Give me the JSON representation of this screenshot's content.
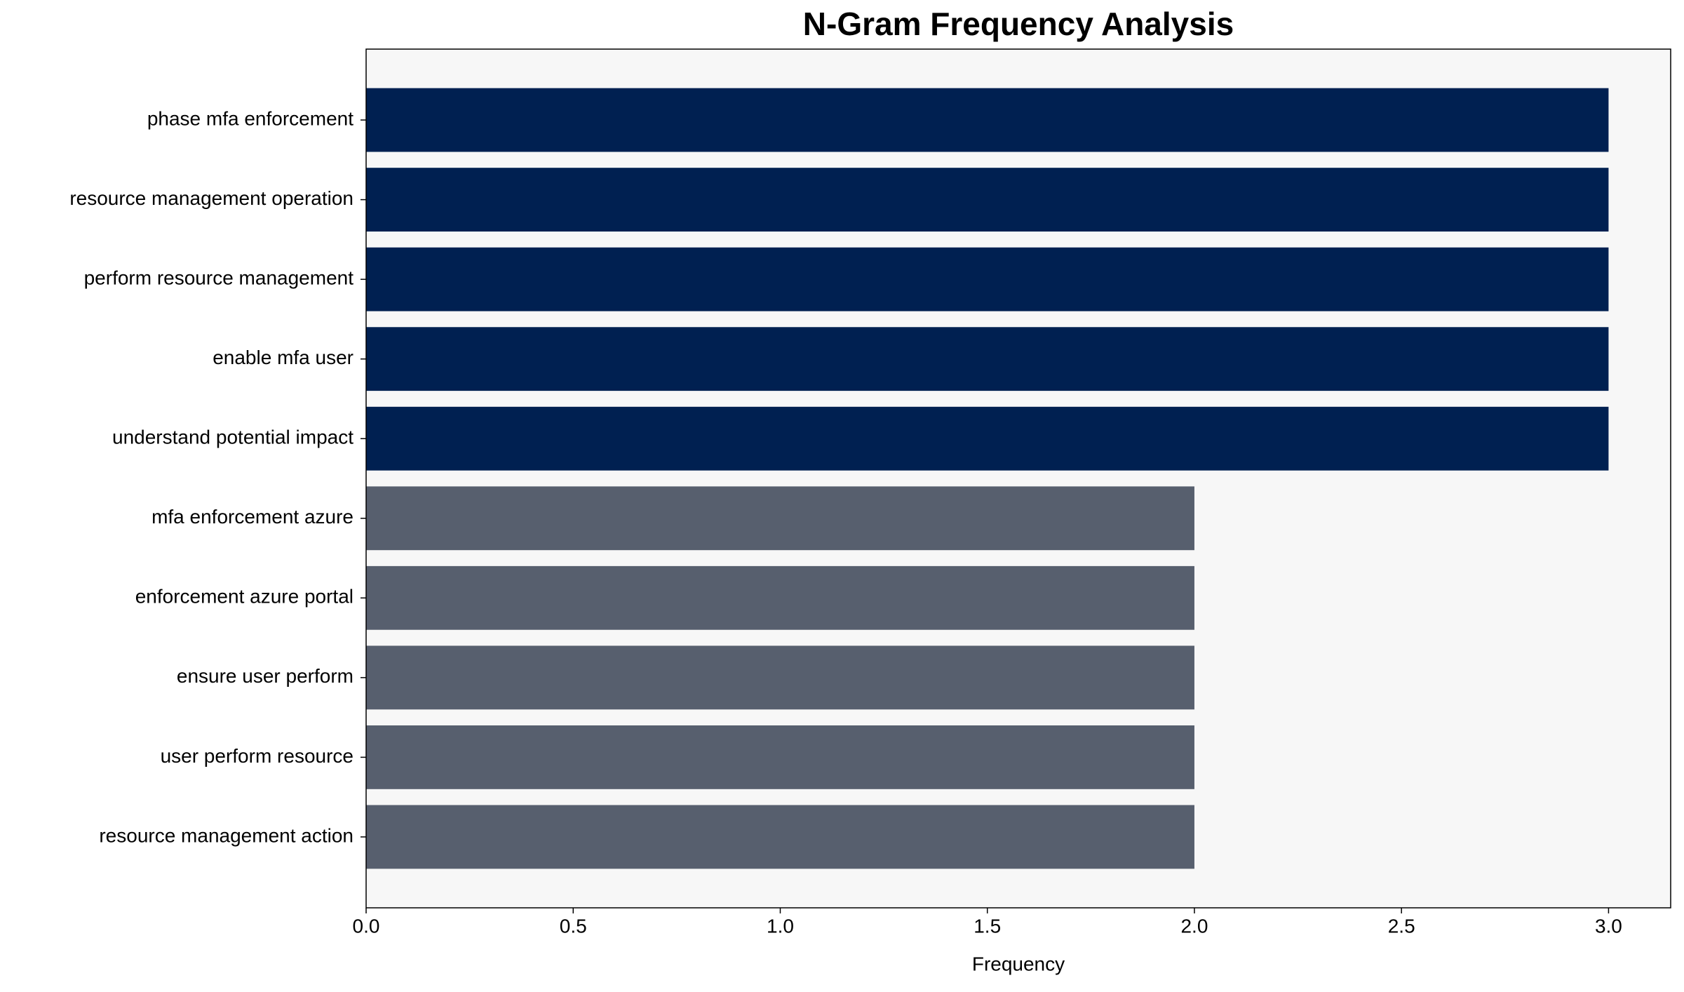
{
  "chart_data": {
    "type": "hbar",
    "title": "N-Gram Frequency Analysis",
    "x_label": "Frequency",
    "categories": [
      "phase mfa enforcement",
      "resource management operation",
      "perform resource management",
      "enable mfa user",
      "understand potential impact",
      "mfa enforcement azure",
      "enforcement azure portal",
      "ensure user perform",
      "user perform resource",
      "resource management action"
    ],
    "values": [
      3,
      3,
      3,
      3,
      3,
      2,
      2,
      2,
      2,
      2
    ],
    "colors": [
      "#002051",
      "#002051",
      "#002051",
      "#002051",
      "#002051",
      "#575f6e",
      "#575f6e",
      "#575f6e",
      "#575f6e",
      "#575f6e"
    ],
    "xlim": [
      0,
      3.15
    ],
    "xticks": [
      {
        "value": 0,
        "label": "0.0"
      },
      0.5,
      {
        "value": 1,
        "label": "1.0"
      },
      1.5,
      {
        "value": 2,
        "label": "2.0"
      },
      2.5,
      {
        "value": 3,
        "label": "3.0"
      }
    ]
  }
}
